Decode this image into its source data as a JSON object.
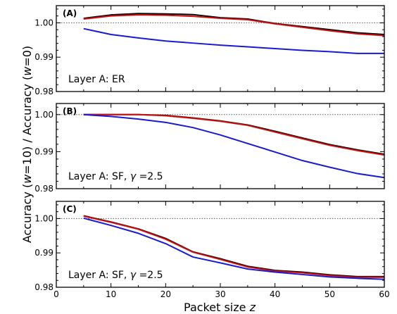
{
  "figure": {
    "ylabel": "Accuracy (w=10) / Accuracy (w=0)",
    "xlabel": "Packet size z"
  },
  "colors": {
    "black": "#000000",
    "red": "#d01010",
    "blue": "#1a1ad0",
    "reference": "#555555"
  },
  "chart_data": [
    {
      "type": "line",
      "panel_tag": "(A)",
      "annotation": "Layer A: ER",
      "xlim": [
        0,
        60
      ],
      "ylim": [
        0.98,
        1.005
      ],
      "yticks": [
        0.98,
        0.99,
        1.0
      ],
      "yticklabels": [
        "0.98",
        "0.99",
        "1.00"
      ],
      "xticks": [
        0,
        10,
        20,
        30,
        40,
        50,
        60
      ],
      "xticklabels": [],
      "reference_y": 1.0,
      "x": [
        5,
        10,
        15,
        20,
        25,
        30,
        35,
        40,
        45,
        50,
        55,
        60
      ],
      "series": [
        {
          "color": "black",
          "values": [
            1.0013,
            1.0023,
            1.0027,
            1.0026,
            1.0024,
            1.0015,
            1.0011,
            0.9998,
            0.9989,
            0.998,
            0.9971,
            0.9966
          ]
        },
        {
          "color": "red",
          "values": [
            1.0011,
            1.002,
            1.0023,
            1.0022,
            1.0019,
            1.0013,
            1.0009,
            0.9997,
            0.9987,
            0.9977,
            0.9968,
            0.9963
          ]
        },
        {
          "color": "blue",
          "values": [
            0.9983,
            0.9966,
            0.9956,
            0.9947,
            0.9941,
            0.9935,
            0.993,
            0.9925,
            0.992,
            0.9916,
            0.9911,
            0.9911
          ]
        }
      ]
    },
    {
      "type": "line",
      "panel_tag": "(B)",
      "annotation": "Layer A: SF, γ =2.5",
      "xlim": [
        0,
        60
      ],
      "ylim": [
        0.98,
        1.003
      ],
      "yticks": [
        0.98,
        0.99,
        1.0
      ],
      "yticklabels": [
        "0.98",
        "0.99",
        "1.00"
      ],
      "xticks": [
        0,
        10,
        20,
        30,
        40,
        50,
        60
      ],
      "xticklabels": [],
      "reference_y": 1.0,
      "x": [
        5,
        10,
        15,
        20,
        25,
        30,
        35,
        40,
        45,
        50,
        55,
        60
      ],
      "series": [
        {
          "color": "black",
          "values": [
            1.0,
            1.0,
            1.0,
            0.9998,
            0.9991,
            0.9983,
            0.9972,
            0.9955,
            0.9937,
            0.9919,
            0.9905,
            0.9893
          ]
        },
        {
          "color": "red",
          "values": [
            1.0,
            1.0,
            1.0,
            0.9997,
            0.999,
            0.9982,
            0.9971,
            0.9953,
            0.9935,
            0.9917,
            0.9903,
            0.9891
          ]
        },
        {
          "color": "blue",
          "values": [
            1.0,
            0.9995,
            0.9988,
            0.9979,
            0.9965,
            0.9945,
            0.9922,
            0.9899,
            0.9876,
            0.9858,
            0.9841,
            0.983
          ]
        }
      ]
    },
    {
      "type": "line",
      "panel_tag": "(C)",
      "annotation": "Layer A: SF, γ =2.5",
      "xlim": [
        0,
        60
      ],
      "ylim": [
        0.98,
        1.005
      ],
      "yticks": [
        0.98,
        0.99,
        1.0
      ],
      "yticklabels": [
        "0.98",
        "0.99",
        "1.00"
      ],
      "xticks": [
        0,
        10,
        20,
        30,
        40,
        50,
        60
      ],
      "xticklabels": [
        "0",
        "10",
        "20",
        "30",
        "40",
        "50",
        "60"
      ],
      "reference_y": 1.0,
      "x": [
        5,
        10,
        15,
        20,
        25,
        30,
        35,
        40,
        45,
        50,
        55,
        60
      ],
      "series": [
        {
          "color": "black",
          "values": [
            1.0008,
            0.999,
            0.997,
            0.9942,
            0.9903,
            0.9883,
            0.9861,
            0.9849,
            0.9844,
            0.9836,
            0.9831,
            0.9831
          ]
        },
        {
          "color": "red",
          "values": [
            1.0007,
            0.9989,
            0.9969,
            0.994,
            0.9902,
            0.9881,
            0.9859,
            0.9847,
            0.9842,
            0.9834,
            0.9829,
            0.9829
          ]
        },
        {
          "color": "blue",
          "values": [
            1.0001,
            0.998,
            0.9957,
            0.9927,
            0.9888,
            0.9871,
            0.9853,
            0.9844,
            0.9837,
            0.983,
            0.9826,
            0.9823
          ]
        }
      ]
    }
  ]
}
